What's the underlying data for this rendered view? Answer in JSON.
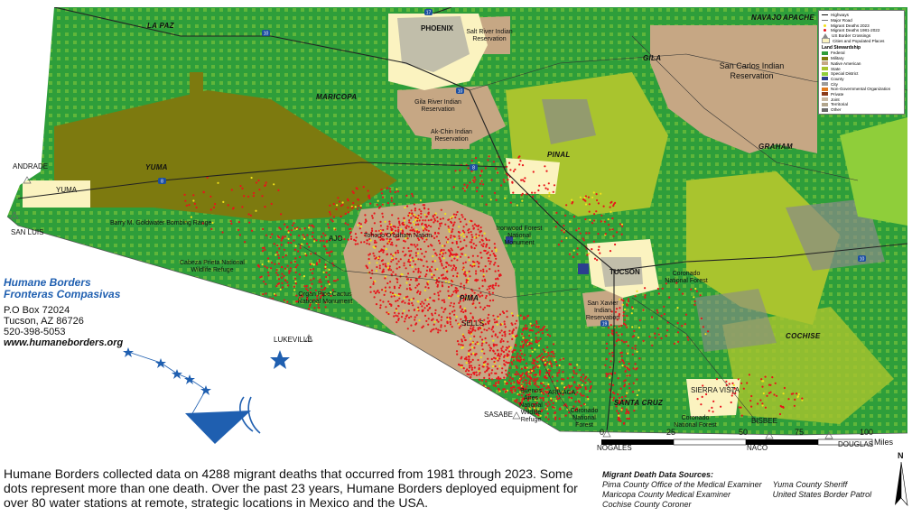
{
  "colors": {
    "federal": "#2e9e3a",
    "military": "#7d7a0f",
    "native_american": "#c6a784",
    "state": "#a9c42e",
    "special_district": "#8fce3a",
    "county": "#2b3f8f",
    "city": "#9b9b9b",
    "ngo": "#e07a1f",
    "private": "#8a8a8a",
    "joint": "#c8b8a2",
    "territorial": "#b2a58d",
    "other": "#6b6b6b",
    "populated": "#fbf3c0",
    "death_old": "#e8141b",
    "death_2023": "#f2e21a",
    "brand": "#1f5fb0"
  },
  "counties": [
    "LA PAZ",
    "MARICOPA",
    "YUMA",
    "PINAL",
    "GILA",
    "NAVAJO",
    "APACHE",
    "GRAHAM",
    "PIMA",
    "SANTA CRUZ",
    "COCHISE"
  ],
  "places": {
    "phoenix": "PHOENIX",
    "andrade": "ANDRADE",
    "yuma": "YUMA",
    "san_luis": "SAN LUIS",
    "ajo": "AJO",
    "lukeville": "LUKEVILLE",
    "sells": "SELLS",
    "tucson": "TUCSON",
    "sasabe": "SASABE",
    "nogales": "NOGALES",
    "naco": "NACO",
    "douglas": "DOUGLAS",
    "sierra_vista": "SIERRA VISTA",
    "bisbee": "BISBEE",
    "arivaca": "ARIVACA"
  },
  "areas": {
    "salt_river": "Salt River Indian Reservation",
    "san_carlos": "San Carlos Indian Reservation",
    "gila_river": "Gila River Indian Reservation",
    "ak_chin": "Ak-Chin Indian Reservation",
    "goldwater": "Barry M. Goldwater Bombing Range",
    "cabeza_prieta": "Cabeza Prieta National Wildlife Refuge",
    "tohono": "Tohono O'odham Nation",
    "organ_pipe": "Organ Pipe Cactus National Monument",
    "coronado_n": "Coronado National Forest",
    "coronado_s": "Coronado National Forest",
    "coronado_sw": "Coronado National Forest",
    "san_xavier": "San Xavier Indian Reservation",
    "ironwood": "Ironwood Forest National Monument",
    "buenos_aires": "Buenos Aires National Wildlife Refuge"
  },
  "legend": {
    "highways": "Highways",
    "major_road": "Major Road",
    "deaths_2023": "Migrant Deaths 2023",
    "deaths_old": "Migrant Deaths 1981-2022",
    "crossings": "US Border Crossings",
    "cities": "Cities and Populated Places",
    "stewardship_title": "Land Stewardship",
    "stewardship": [
      "Federal",
      "Military",
      "Native American",
      "State",
      "Special District",
      "County",
      "City",
      "Non-Governmental Organization",
      "Private",
      "Joint",
      "Territorial",
      "Other"
    ]
  },
  "highway_shields": [
    "10",
    "8",
    "10",
    "19",
    "17",
    "10",
    "8"
  ],
  "org": {
    "name_en": "Humane Borders",
    "name_es": "Fronteras Compasivas",
    "address1": "P.O Box 72024",
    "address2": "Tucson, AZ 86726",
    "phone": "520-398-5053",
    "website": "www.humaneborders.org"
  },
  "scale": {
    "ticks": [
      "0",
      "25",
      "50",
      "75",
      "100"
    ],
    "unit": "Miles"
  },
  "north": "N",
  "caption": "Humane Borders collected data on 4288 migrant deaths that occurred from 1981 through 2023. Some dots represent more than one death. Over the past 23 years, Humane Borders deployed equipment for over 80 water stations at remote, strategic locations in Mexico and the USA.",
  "sources": {
    "title": "Migrant Death Data Sources:",
    "col1": [
      "Pima County Office of the Medical Examiner",
      "Maricopa County Medical Examiner",
      "Cochise County Coroner"
    ],
    "col2": [
      "Yuma County Sheriff",
      "United States Border Patrol"
    ]
  }
}
